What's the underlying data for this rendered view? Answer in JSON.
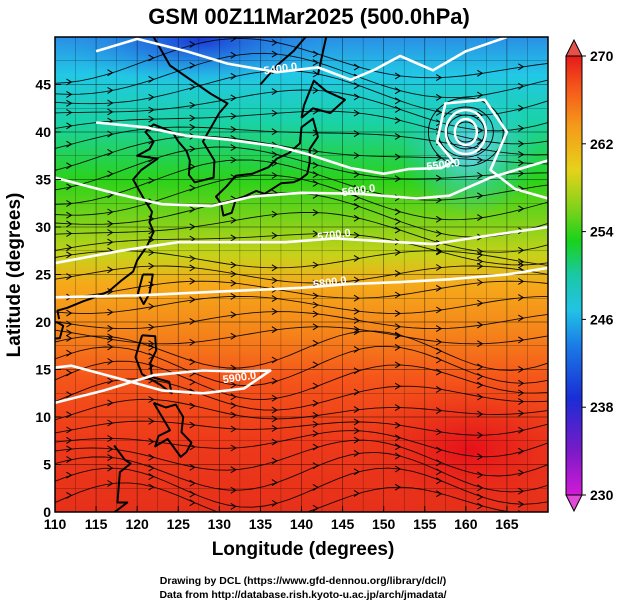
{
  "title": "GSM 00Z11Mar2025 (500.0hPa)",
  "xlabel": "Longitude (degrees)",
  "ylabel": "Latitude  (degrees)",
  "credits": [
    "Drawing by DCL (https://www.gfd-dennou.org/library/dcl/)",
    "Data from http://database.rish.kyoto-u.ac.jp/arch/jmadata/"
  ],
  "colors": {
    "coast": "#000000",
    "contour": "#ffffff",
    "streamline": "#000000",
    "grid": "#000000"
  },
  "chart_data": {
    "type": "map",
    "x_range": [
      110,
      170
    ],
    "y_range": [
      0,
      50
    ],
    "x_ticks": [
      "110",
      "115",
      "120",
      "125",
      "130",
      "135",
      "140",
      "145",
      "150",
      "155",
      "160",
      "165"
    ],
    "y_ticks": [
      "0",
      "5",
      "10",
      "15",
      "20",
      "25",
      "30",
      "35",
      "40",
      "45"
    ],
    "grid": true,
    "colorbar": {
      "placement": "right",
      "ticks": [
        "230",
        "238",
        "246",
        "254",
        "262",
        "270"
      ],
      "range": [
        230,
        270
      ],
      "extend": "both"
    },
    "contours": [
      {
        "label": "5400.0",
        "label_lon": 137.5,
        "label_lat": 46.3
      },
      {
        "label": "5500.0",
        "label_lon": 157.3,
        "label_lat": 36.2
      },
      {
        "label": "5600.0",
        "label_lon": 147.0,
        "label_lat": 33.5
      },
      {
        "label": "5700.0",
        "label_lon": 144.0,
        "label_lat": 28.8
      },
      {
        "label": "5800.0",
        "label_lon": 143.5,
        "label_lat": 23.8
      },
      {
        "label": "5900.0",
        "label_lon": 132.5,
        "label_lat": 13.8
      }
    ]
  }
}
